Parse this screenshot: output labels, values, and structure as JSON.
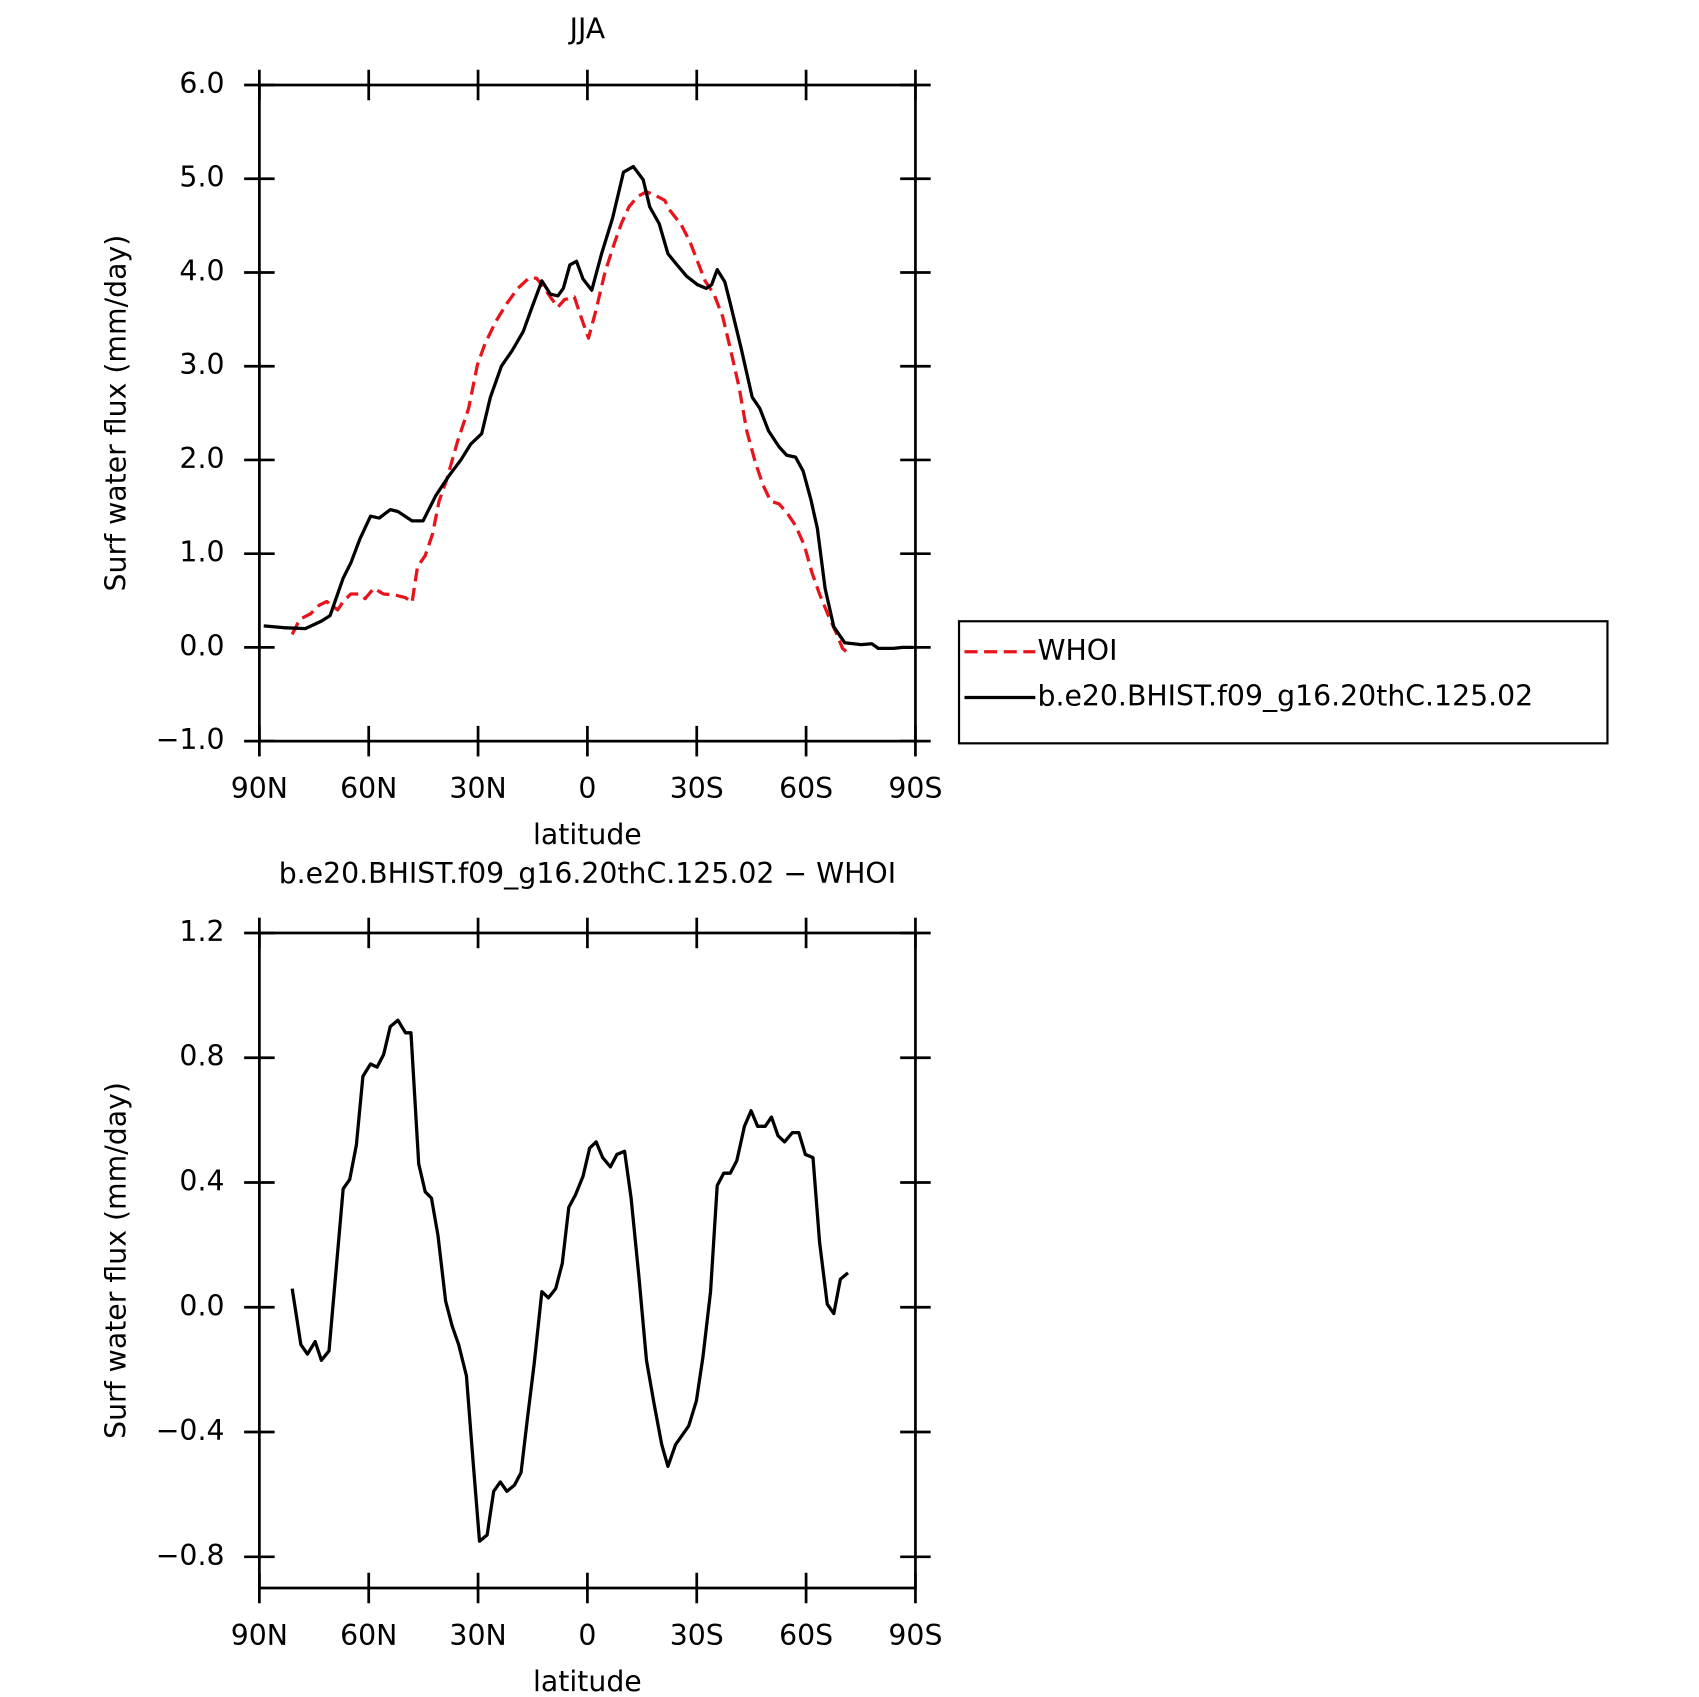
{
  "chart_data": [
    {
      "type": "line",
      "title": "JJA",
      "x_label": "latitude",
      "y_label": "Surf water flux (mm/day)",
      "xlim": [
        90,
        -90
      ],
      "xticks": [
        {
          "value": 90,
          "label": "90N"
        },
        {
          "value": 60,
          "label": "60N"
        },
        {
          "value": 30,
          "label": "30N"
        },
        0,
        {
          "value": -30,
          "label": "30S"
        },
        {
          "value": -60,
          "label": "60S"
        },
        {
          "value": -90,
          "label": "90S"
        }
      ],
      "ylim": [
        -1,
        6
      ],
      "yticks": [
        {
          "value": -1,
          "label": "−1.0"
        },
        {
          "value": 0,
          "label": "0.0"
        },
        {
          "value": 1,
          "label": "1.0"
        },
        {
          "value": 2,
          "label": "2.0"
        },
        {
          "value": 3,
          "label": "3.0"
        },
        {
          "value": 4,
          "label": "4.0"
        },
        {
          "value": 5,
          "label": "5.0"
        },
        {
          "value": 6,
          "label": "6.0"
        }
      ],
      "legend": "right",
      "series": [
        {
          "name": "WHOI",
          "color": "#e8141c",
          "dash": true,
          "x": [
            81,
            78.9,
            75.9,
            73.6,
            71.5,
            68.5,
            67,
            64.9,
            62.5,
            61,
            58.6,
            55.9,
            52.9,
            49.9,
            48.1,
            46.6,
            44.5,
            42.5,
            40.7,
            38.6,
            35.6,
            32.6,
            30.2,
            28.1,
            25.1,
            22.1,
            19.1,
            16.1,
            14,
            12.3,
            10.2,
            8.1,
            6.3,
            3.6,
            1.8,
            -0.3,
            -2.3,
            -4.8,
            -7.2,
            -9.3,
            -11.4,
            -13.8,
            -16.2,
            -18.3,
            -21.2,
            -22.7,
            -25.7,
            -28.1,
            -30.2,
            -32.3,
            -34.7,
            -37.1,
            -39.2,
            -41.6,
            -43.7,
            -46.1,
            -48.2,
            -50.3,
            -52.6,
            -54.7,
            -57.1,
            -59.5,
            -61.6,
            -63.7,
            -66.1,
            -68.2,
            -70,
            -71.5
          ],
          "values": [
            0.14,
            0.3,
            0.36,
            0.45,
            0.49,
            0.4,
            0.49,
            0.57,
            0.57,
            0.52,
            0.63,
            0.57,
            0.56,
            0.53,
            0.48,
            0.86,
            0.98,
            1.21,
            1.56,
            1.79,
            2.2,
            2.55,
            3.01,
            3.24,
            3.48,
            3.67,
            3.83,
            3.94,
            3.94,
            3.86,
            3.74,
            3.63,
            3.71,
            3.74,
            3.53,
            3.3,
            3.59,
            4.0,
            4.29,
            4.52,
            4.7,
            4.81,
            4.86,
            4.83,
            4.77,
            4.66,
            4.51,
            4.33,
            4.12,
            3.91,
            3.77,
            3.53,
            3.19,
            2.78,
            2.31,
            1.97,
            1.73,
            1.56,
            1.53,
            1.44,
            1.3,
            1.09,
            0.8,
            0.57,
            0.34,
            0.16,
            -0.01,
            -0.06
          ]
        },
        {
          "name": "b.e20.BHIST.f09_g16.20thC.125.02",
          "color": "#000000",
          "dash": false,
          "x": [
            88.8,
            83.4,
            77.4,
            73,
            70.6,
            67,
            64.9,
            62.5,
            59.5,
            57.1,
            54.1,
            52,
            48.1,
            45.1,
            41.6,
            38,
            34.7,
            32,
            29,
            26.6,
            23.6,
            20.6,
            17.6,
            15.2,
            12.5,
            10.2,
            8.1,
            6.6,
            4.8,
            3,
            1.2,
            -1.2,
            -3.9,
            -6.9,
            -9.9,
            -12.6,
            -15.3,
            -17.1,
            -19.7,
            -22.1,
            -24.2,
            -27.2,
            -30.2,
            -32.6,
            -34.1,
            -35.6,
            -37.7,
            -39.2,
            -42.2,
            -45.2,
            -47.3,
            -49.7,
            -52.6,
            -54.7,
            -57.1,
            -59.2,
            -61.3,
            -63.1,
            -65.2,
            -67.6,
            -70.6,
            -75.1,
            -78,
            -79.8,
            -84,
            -86.4,
            -89.4
          ],
          "values": [
            0.23,
            0.21,
            0.2,
            0.28,
            0.34,
            0.74,
            0.9,
            1.15,
            1.4,
            1.38,
            1.47,
            1.45,
            1.35,
            1.35,
            1.62,
            1.83,
            2.0,
            2.17,
            2.28,
            2.67,
            3.0,
            3.17,
            3.37,
            3.63,
            3.91,
            3.77,
            3.75,
            3.83,
            4.08,
            4.12,
            3.93,
            3.81,
            4.2,
            4.58,
            5.07,
            5.13,
            4.99,
            4.7,
            4.52,
            4.2,
            4.1,
            3.96,
            3.87,
            3.83,
            3.87,
            4.03,
            3.9,
            3.67,
            3.19,
            2.67,
            2.55,
            2.31,
            2.14,
            2.05,
            2.03,
            1.88,
            1.58,
            1.27,
            0.63,
            0.22,
            0.05,
            0.03,
            0.04,
            -0.01,
            -0.01,
            0.0,
            0.0
          ]
        }
      ]
    },
    {
      "type": "line",
      "title": "b.e20.BHIST.f09_g16.20thC.125.02 − WHOI",
      "x_label": "latitude",
      "y_label": "Surf water flux (mm/day)",
      "xlim": [
        90,
        -90
      ],
      "xticks": [
        {
          "value": 90,
          "label": "90N"
        },
        {
          "value": 60,
          "label": "60N"
        },
        {
          "value": 30,
          "label": "30N"
        },
        0,
        {
          "value": -30,
          "label": "30S"
        },
        {
          "value": -60,
          "label": "60S"
        },
        {
          "value": -90,
          "label": "90S"
        }
      ],
      "ylim": [
        -0.9,
        1.2
      ],
      "yticks": [
        {
          "value": -0.8,
          "label": "−0.8"
        },
        {
          "value": -0.4,
          "label": "−0.4"
        },
        {
          "value": 0,
          "label": "0.0"
        },
        0.4,
        0.8,
        1.2
      ],
      "series": [
        {
          "color": "#000000",
          "dash": false,
          "x": [
            81,
            78.6,
            76.8,
            74.7,
            73,
            70.9,
            69.1,
            67,
            65.2,
            63.4,
            61.6,
            59.5,
            57.7,
            55.9,
            54.1,
            52,
            49.9,
            48.4,
            46.3,
            44.5,
            42.8,
            41,
            38.9,
            37.1,
            35.3,
            33.2,
            31.4,
            29.6,
            27.5,
            25.7,
            23.9,
            22.1,
            20,
            18.2,
            16.4,
            14.6,
            12.5,
            10.7,
            8.7,
            6.9,
            5.1,
            3.3,
            1.2,
            -0.6,
            -2.4,
            -4.2,
            -6.3,
            -8.1,
            -10.2,
            -12,
            -14.1,
            -16.2,
            -18.3,
            -20.4,
            -22.1,
            -24.2,
            -26,
            -27.8,
            -29.9,
            -31.7,
            -33.8,
            -35.6,
            -37.4,
            -39.2,
            -41,
            -43.1,
            -44.9,
            -46.7,
            -48.8,
            -50.5,
            -52.3,
            -54.1,
            -56.2,
            -58,
            -59.8,
            -61.9,
            -63.7,
            -65.8,
            -67.6,
            -69.4,
            -71.5
          ],
          "values": [
            0.06,
            -0.12,
            -0.15,
            -0.11,
            -0.17,
            -0.14,
            0.1,
            0.38,
            0.41,
            0.52,
            0.74,
            0.78,
            0.77,
            0.81,
            0.9,
            0.92,
            0.88,
            0.88,
            0.46,
            0.37,
            0.35,
            0.23,
            0.02,
            -0.06,
            -0.12,
            -0.22,
            -0.49,
            -0.75,
            -0.73,
            -0.59,
            -0.56,
            -0.59,
            -0.57,
            -0.53,
            -0.35,
            -0.18,
            0.05,
            0.03,
            0.06,
            0.14,
            0.32,
            0.36,
            0.42,
            0.51,
            0.53,
            0.48,
            0.45,
            0.49,
            0.5,
            0.35,
            0.1,
            -0.17,
            -0.31,
            -0.44,
            -0.51,
            -0.44,
            -0.41,
            -0.38,
            -0.3,
            -0.16,
            0.05,
            0.39,
            0.43,
            0.43,
            0.47,
            0.58,
            0.63,
            0.58,
            0.58,
            0.61,
            0.55,
            0.53,
            0.56,
            0.56,
            0.49,
            0.48,
            0.21,
            0.01,
            -0.02,
            0.09,
            0.11
          ]
        }
      ]
    }
  ]
}
